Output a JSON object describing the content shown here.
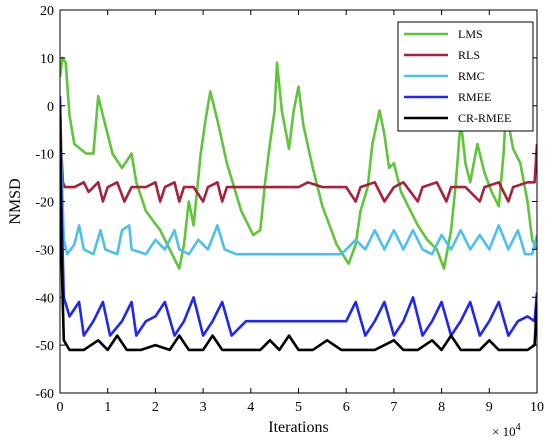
{
  "chart_data": {
    "type": "line",
    "xlabel": "Iterations",
    "ylabel": "NMSD",
    "x_multiplier_label": {
      "base": "× 10",
      "exponent": "4"
    },
    "xlim": [
      0,
      10
    ],
    "ylim": [
      -60,
      20
    ],
    "xticks": [
      "0",
      "1",
      "2",
      "3",
      "4",
      "5",
      "6",
      "7",
      "8",
      "9",
      "10"
    ],
    "yticks": [
      "20",
      "10",
      "0",
      "-10",
      "-20",
      "-30",
      "-40",
      "-50",
      "-60"
    ],
    "legend_position": "top-right",
    "grid": false,
    "series": [
      {
        "name": "LMS",
        "color": "#5fc53a",
        "points": [
          [
            0,
            6
          ],
          [
            0.05,
            10
          ],
          [
            0.12,
            9
          ],
          [
            0.2,
            -2
          ],
          [
            0.3,
            -8
          ],
          [
            0.55,
            -10
          ],
          [
            0.7,
            -10
          ],
          [
            0.8,
            2
          ],
          [
            0.9,
            -2
          ],
          [
            1.1,
            -10
          ],
          [
            1.3,
            -13
          ],
          [
            1.5,
            -10
          ],
          [
            1.6,
            -16
          ],
          [
            1.8,
            -22
          ],
          [
            2.1,
            -26
          ],
          [
            2.3,
            -30
          ],
          [
            2.5,
            -34
          ],
          [
            2.6,
            -29
          ],
          [
            2.7,
            -20
          ],
          [
            2.8,
            -25
          ],
          [
            2.95,
            -10
          ],
          [
            3.05,
            -3
          ],
          [
            3.15,
            3
          ],
          [
            3.3,
            -3
          ],
          [
            3.5,
            -12
          ],
          [
            3.8,
            -22
          ],
          [
            4.05,
            -27
          ],
          [
            4.2,
            -26
          ],
          [
            4.3,
            -16
          ],
          [
            4.4,
            -8
          ],
          [
            4.5,
            -1
          ],
          [
            4.55,
            9
          ],
          [
            4.65,
            -1
          ],
          [
            4.8,
            -9
          ],
          [
            4.9,
            -1
          ],
          [
            5.0,
            4
          ],
          [
            5.1,
            -4
          ],
          [
            5.3,
            -13
          ],
          [
            5.5,
            -21
          ],
          [
            5.8,
            -29
          ],
          [
            6.05,
            -33
          ],
          [
            6.2,
            -29
          ],
          [
            6.3,
            -22
          ],
          [
            6.45,
            -17
          ],
          [
            6.55,
            -8
          ],
          [
            6.7,
            -1
          ],
          [
            6.8,
            -6
          ],
          [
            6.9,
            -13
          ],
          [
            7.0,
            -12
          ],
          [
            7.15,
            -18
          ],
          [
            7.3,
            -21
          ],
          [
            7.5,
            -25
          ],
          [
            7.7,
            -28
          ],
          [
            7.9,
            -30
          ],
          [
            8.05,
            -34
          ],
          [
            8.2,
            -26
          ],
          [
            8.3,
            -16
          ],
          [
            8.4,
            -3
          ],
          [
            8.5,
            -12
          ],
          [
            8.6,
            -16
          ],
          [
            8.75,
            -8
          ],
          [
            8.9,
            -14
          ],
          [
            9.05,
            -18
          ],
          [
            9.2,
            -21
          ],
          [
            9.3,
            -10
          ],
          [
            9.35,
            -1
          ],
          [
            9.5,
            -9
          ],
          [
            9.65,
            -12
          ],
          [
            9.8,
            -20
          ],
          [
            9.9,
            -28
          ],
          [
            10,
            -30
          ]
        ]
      },
      {
        "name": "RLS",
        "color": "#a8203a",
        "points": [
          [
            0,
            0
          ],
          [
            0.03,
            -10
          ],
          [
            0.06,
            -16
          ],
          [
            0.1,
            -17
          ],
          [
            0.3,
            -17
          ],
          [
            0.5,
            -16
          ],
          [
            0.6,
            -18
          ],
          [
            0.7,
            -17
          ],
          [
            0.8,
            -16
          ],
          [
            0.9,
            -20
          ],
          [
            1.0,
            -17
          ],
          [
            1.2,
            -16
          ],
          [
            1.35,
            -20
          ],
          [
            1.5,
            -17
          ],
          [
            1.8,
            -17
          ],
          [
            2.0,
            -16
          ],
          [
            2.1,
            -20
          ],
          [
            2.2,
            -17
          ],
          [
            2.4,
            -16
          ],
          [
            2.5,
            -20
          ],
          [
            2.6,
            -17
          ],
          [
            2.8,
            -17
          ],
          [
            3.0,
            -20
          ],
          [
            3.1,
            -17
          ],
          [
            3.3,
            -16
          ],
          [
            3.4,
            -20
          ],
          [
            3.5,
            -17
          ],
          [
            4.0,
            -17
          ],
          [
            4.5,
            -17
          ],
          [
            5.0,
            -17
          ],
          [
            5.2,
            -16
          ],
          [
            5.5,
            -17
          ],
          [
            6.0,
            -17
          ],
          [
            6.2,
            -20
          ],
          [
            6.3,
            -17
          ],
          [
            6.6,
            -16
          ],
          [
            6.8,
            -20
          ],
          [
            7.0,
            -17
          ],
          [
            7.2,
            -16
          ],
          [
            7.5,
            -20
          ],
          [
            7.6,
            -17
          ],
          [
            7.9,
            -16
          ],
          [
            8.1,
            -20
          ],
          [
            8.2,
            -17
          ],
          [
            8.5,
            -17
          ],
          [
            8.8,
            -20
          ],
          [
            8.9,
            -17
          ],
          [
            9.2,
            -16
          ],
          [
            9.4,
            -20
          ],
          [
            9.5,
            -17
          ],
          [
            9.8,
            -16
          ],
          [
            9.95,
            -16
          ],
          [
            10,
            -8
          ]
        ]
      },
      {
        "name": "RMC",
        "color": "#4dc0ee",
        "points": [
          [
            0,
            0
          ],
          [
            0.03,
            -12
          ],
          [
            0.08,
            -28
          ],
          [
            0.15,
            -31
          ],
          [
            0.3,
            -29
          ],
          [
            0.4,
            -25
          ],
          [
            0.5,
            -30
          ],
          [
            0.7,
            -31
          ],
          [
            0.85,
            -26
          ],
          [
            0.95,
            -30
          ],
          [
            1.2,
            -31
          ],
          [
            1.3,
            -26
          ],
          [
            1.45,
            -25
          ],
          [
            1.5,
            -30
          ],
          [
            1.8,
            -31
          ],
          [
            2.0,
            -28
          ],
          [
            2.2,
            -30
          ],
          [
            2.4,
            -26
          ],
          [
            2.5,
            -30
          ],
          [
            2.7,
            -31
          ],
          [
            2.9,
            -28
          ],
          [
            3.1,
            -30
          ],
          [
            3.3,
            -25
          ],
          [
            3.45,
            -30
          ],
          [
            3.7,
            -31
          ],
          [
            4.0,
            -31
          ],
          [
            4.5,
            -31
          ],
          [
            5.0,
            -31
          ],
          [
            5.5,
            -31
          ],
          [
            5.9,
            -31
          ],
          [
            6.2,
            -28
          ],
          [
            6.4,
            -30
          ],
          [
            6.6,
            -26
          ],
          [
            6.8,
            -30
          ],
          [
            7.0,
            -26
          ],
          [
            7.2,
            -30
          ],
          [
            7.4,
            -26
          ],
          [
            7.6,
            -30
          ],
          [
            7.8,
            -31
          ],
          [
            8.0,
            -27
          ],
          [
            8.2,
            -30
          ],
          [
            8.4,
            -26
          ],
          [
            8.6,
            -30
          ],
          [
            8.8,
            -27
          ],
          [
            9.0,
            -30
          ],
          [
            9.2,
            -25
          ],
          [
            9.4,
            -30
          ],
          [
            9.6,
            -26
          ],
          [
            9.75,
            -31
          ],
          [
            9.9,
            -31
          ],
          [
            10,
            -27
          ]
        ]
      },
      {
        "name": "RMEE",
        "color": "#1f27f0",
        "points": [
          [
            0,
            2
          ],
          [
            0.03,
            -20
          ],
          [
            0.08,
            -40
          ],
          [
            0.2,
            -44
          ],
          [
            0.4,
            -41
          ],
          [
            0.5,
            -48
          ],
          [
            0.7,
            -45
          ],
          [
            0.9,
            -41
          ],
          [
            1.05,
            -48
          ],
          [
            1.3,
            -45
          ],
          [
            1.5,
            -41
          ],
          [
            1.6,
            -48
          ],
          [
            1.8,
            -45
          ],
          [
            2.0,
            -44
          ],
          [
            2.2,
            -41
          ],
          [
            2.4,
            -48
          ],
          [
            2.6,
            -45
          ],
          [
            2.8,
            -40
          ],
          [
            3.0,
            -48
          ],
          [
            3.2,
            -45
          ],
          [
            3.4,
            -41
          ],
          [
            3.6,
            -48
          ],
          [
            3.9,
            -45
          ],
          [
            4.0,
            -45
          ],
          [
            4.5,
            -45
          ],
          [
            5.0,
            -45
          ],
          [
            5.5,
            -45
          ],
          [
            6.0,
            -45
          ],
          [
            6.2,
            -41
          ],
          [
            6.4,
            -48
          ],
          [
            6.6,
            -45
          ],
          [
            6.8,
            -41
          ],
          [
            7.0,
            -48
          ],
          [
            7.2,
            -45
          ],
          [
            7.4,
            -40
          ],
          [
            7.6,
            -48
          ],
          [
            7.8,
            -45
          ],
          [
            8.0,
            -41
          ],
          [
            8.2,
            -48
          ],
          [
            8.4,
            -45
          ],
          [
            8.6,
            -41
          ],
          [
            8.8,
            -48
          ],
          [
            9.0,
            -45
          ],
          [
            9.2,
            -41
          ],
          [
            9.4,
            -48
          ],
          [
            9.6,
            -45
          ],
          [
            9.8,
            -44
          ],
          [
            9.95,
            -45
          ],
          [
            10,
            -39
          ]
        ]
      },
      {
        "name": "CR-RMEE",
        "color": "#000000",
        "points": [
          [
            0,
            0
          ],
          [
            0.03,
            -30
          ],
          [
            0.08,
            -49
          ],
          [
            0.2,
            -51
          ],
          [
            0.5,
            -51
          ],
          [
            0.8,
            -49
          ],
          [
            1.0,
            -51
          ],
          [
            1.2,
            -48
          ],
          [
            1.4,
            -51
          ],
          [
            1.7,
            -51
          ],
          [
            2.0,
            -50
          ],
          [
            2.3,
            -51
          ],
          [
            2.5,
            -48
          ],
          [
            2.7,
            -51
          ],
          [
            3.0,
            -51
          ],
          [
            3.2,
            -48
          ],
          [
            3.4,
            -51
          ],
          [
            3.8,
            -51
          ],
          [
            4.2,
            -51
          ],
          [
            4.4,
            -49
          ],
          [
            4.6,
            -51
          ],
          [
            4.8,
            -48
          ],
          [
            5.0,
            -51
          ],
          [
            5.3,
            -51
          ],
          [
            5.6,
            -49
          ],
          [
            5.9,
            -51
          ],
          [
            6.2,
            -51
          ],
          [
            6.6,
            -51
          ],
          [
            7.0,
            -49
          ],
          [
            7.2,
            -51
          ],
          [
            7.5,
            -51
          ],
          [
            7.8,
            -49
          ],
          [
            8.0,
            -51
          ],
          [
            8.2,
            -48
          ],
          [
            8.4,
            -51
          ],
          [
            8.8,
            -51
          ],
          [
            9.0,
            -49
          ],
          [
            9.2,
            -51
          ],
          [
            9.5,
            -51
          ],
          [
            9.8,
            -51
          ],
          [
            9.95,
            -50
          ],
          [
            10,
            -41
          ]
        ]
      }
    ]
  }
}
